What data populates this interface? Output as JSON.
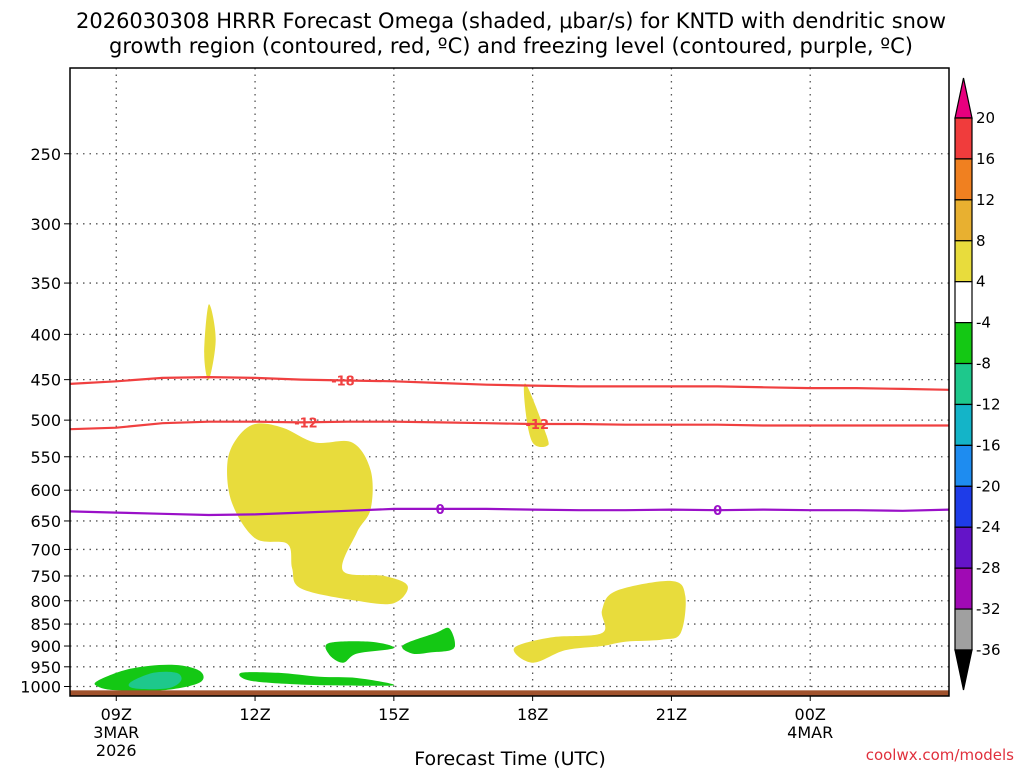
{
  "title_line1": "2026030308 HRRR Forecast Omega (shaded, μbar/s) for KNTD with dendritic snow",
  "title_line2": "growth region (contoured, red, ºC) and freezing level (contoured, purple, ºC)",
  "credit": "coolwx.com/models",
  "chart_data": {
    "type": "heatmap",
    "title": "2026030308 HRRR Forecast Omega (shaded, μbar/s) for KNTD with dendritic snow growth region (contoured, red, ºC) and freezing level (contoured, purple, ºC)",
    "xlabel": "Forecast Time (UTC)",
    "ylabel": "",
    "xlim": [
      8,
      27
    ],
    "ylim": [
      1025,
      200
    ],
    "y_scale": "log-pressure",
    "y_ticks": [
      250,
      300,
      350,
      400,
      450,
      500,
      550,
      600,
      650,
      700,
      750,
      800,
      850,
      900,
      950,
      1000
    ],
    "x_ticks": [
      {
        "x": 9,
        "label": "09Z",
        "sub1": "3MAR",
        "sub2": "2026"
      },
      {
        "x": 12,
        "label": "12Z",
        "sub1": "",
        "sub2": ""
      },
      {
        "x": 15,
        "label": "15Z",
        "sub1": "",
        "sub2": ""
      },
      {
        "x": 18,
        "label": "18Z",
        "sub1": "",
        "sub2": ""
      },
      {
        "x": 21,
        "label": "21Z",
        "sub1": "",
        "sub2": ""
      },
      {
        "x": 24,
        "label": "00Z",
        "sub1": "4MAR",
        "sub2": ""
      }
    ],
    "grid": true,
    "ground_pressure": 1010,
    "colorbar": {
      "levels": [
        20,
        16,
        12,
        8,
        4,
        -4,
        -8,
        -12,
        -16,
        -20,
        -24,
        -28,
        -32,
        -36
      ],
      "colors": [
        "#e8007e",
        "#f03c3c",
        "#f08020",
        "#e8b030",
        "#e8dc3c",
        "#ffffff",
        "#14c814",
        "#1ec88c",
        "#14b4c8",
        "#1e8cf0",
        "#1e3ce8",
        "#6414c8",
        "#a00ab4",
        "#a0a0a0",
        "#000000"
      ]
    },
    "omega_regions": [
      {
        "color": "#e8dc3c",
        "points": [
          [
            11.0,
            370
          ],
          [
            11.15,
            405
          ],
          [
            11.0,
            450
          ],
          [
            10.9,
            420
          ]
        ]
      },
      {
        "color": "#e8dc3c",
        "points": [
          [
            12.0,
            505
          ],
          [
            12.6,
            510
          ],
          [
            13.3,
            530
          ],
          [
            14.1,
            530
          ],
          [
            14.5,
            570
          ],
          [
            14.5,
            630
          ],
          [
            14.2,
            670
          ],
          [
            13.9,
            740
          ],
          [
            14.8,
            750
          ],
          [
            15.3,
            770
          ],
          [
            15.0,
            805
          ],
          [
            14.2,
            800
          ],
          [
            13.0,
            775
          ],
          [
            12.8,
            735
          ],
          [
            12.7,
            690
          ],
          [
            12.0,
            680
          ],
          [
            11.5,
            620
          ],
          [
            11.4,
            560
          ],
          [
            11.6,
            525
          ]
        ]
      },
      {
        "color": "#e8dc3c",
        "points": [
          [
            17.85,
            455
          ],
          [
            18.3,
            520
          ],
          [
            18.3,
            535
          ],
          [
            18.0,
            530
          ],
          [
            17.85,
            490
          ]
        ]
      },
      {
        "color": "#e8dc3c",
        "points": [
          [
            19.8,
            780
          ],
          [
            21.0,
            760
          ],
          [
            21.3,
            790
          ],
          [
            21.2,
            870
          ],
          [
            20.8,
            885
          ],
          [
            20.0,
            890
          ],
          [
            19.5,
            900
          ],
          [
            18.7,
            910
          ],
          [
            18.0,
            940
          ],
          [
            17.6,
            905
          ],
          [
            18.4,
            880
          ],
          [
            19.5,
            870
          ],
          [
            19.5,
            820
          ]
        ]
      },
      {
        "color": "#14c814",
        "points": [
          [
            13.6,
            893
          ],
          [
            14.5,
            890
          ],
          [
            15.0,
            905
          ],
          [
            14.2,
            918
          ],
          [
            13.9,
            940
          ],
          [
            13.6,
            920
          ]
        ]
      },
      {
        "color": "#14c814",
        "points": [
          [
            15.2,
            898
          ],
          [
            15.9,
            870
          ],
          [
            16.2,
            860
          ],
          [
            16.3,
            905
          ],
          [
            15.8,
            915
          ],
          [
            15.4,
            918
          ]
        ]
      },
      {
        "color": "#14c814",
        "points": [
          [
            8.6,
            985
          ],
          [
            9.3,
            955
          ],
          [
            10.2,
            945
          ],
          [
            10.8,
            960
          ],
          [
            10.8,
            990
          ],
          [
            10.0,
            1010
          ],
          [
            9.0,
            1010
          ],
          [
            8.6,
            1000
          ]
        ]
      },
      {
        "color": "#1ec88c",
        "points": [
          [
            9.3,
            990
          ],
          [
            9.8,
            965
          ],
          [
            10.3,
            965
          ],
          [
            10.4,
            985
          ],
          [
            10.1,
            1005
          ],
          [
            9.4,
            1005
          ]
        ]
      },
      {
        "color": "#14c814",
        "points": [
          [
            11.7,
            965
          ],
          [
            12.5,
            965
          ],
          [
            13.4,
            975
          ],
          [
            14.2,
            978
          ],
          [
            15.0,
            995
          ],
          [
            14.5,
            998
          ],
          [
            13.0,
            995
          ],
          [
            11.9,
            985
          ]
        ]
      }
    ],
    "contours": [
      {
        "color": "#f04040",
        "label": "-18",
        "label_x": 13.9,
        "points": [
          [
            8,
            455
          ],
          [
            9,
            452
          ],
          [
            10,
            448
          ],
          [
            11,
            447
          ],
          [
            12,
            448
          ],
          [
            13,
            450
          ],
          [
            14,
            451
          ],
          [
            15,
            452
          ],
          [
            16,
            454
          ],
          [
            17,
            456
          ],
          [
            18,
            457
          ],
          [
            19,
            458
          ],
          [
            20,
            458
          ],
          [
            21,
            458
          ],
          [
            22,
            458
          ],
          [
            23,
            459
          ],
          [
            24,
            460
          ],
          [
            25,
            460
          ],
          [
            26,
            461
          ],
          [
            27,
            462
          ]
        ]
      },
      {
        "color": "#f04040",
        "label": "-12",
        "label_x": 13.1,
        "points": [
          [
            8,
            512
          ],
          [
            9,
            510
          ],
          [
            10,
            504
          ],
          [
            11,
            502
          ],
          [
            12,
            502
          ],
          [
            13,
            503
          ],
          [
            14,
            502
          ],
          [
            15,
            502
          ],
          [
            16,
            503
          ],
          [
            17,
            504
          ],
          [
            18,
            505
          ],
          [
            19,
            505
          ],
          [
            20,
            506
          ],
          [
            21,
            506
          ],
          [
            22,
            506
          ],
          [
            23,
            507
          ],
          [
            24,
            507
          ],
          [
            25,
            507
          ],
          [
            26,
            507
          ],
          [
            27,
            507
          ]
        ]
      },
      {
        "color": "#f04040",
        "label": "-12",
        "label_x": 18.1,
        "points": []
      },
      {
        "color": "#9a10c8",
        "label": "0",
        "label_x": 16.0,
        "points": [
          [
            8,
            634
          ],
          [
            9,
            636
          ],
          [
            10,
            638
          ],
          [
            11,
            640
          ],
          [
            12,
            639
          ],
          [
            13,
            636
          ],
          [
            14,
            633
          ],
          [
            15,
            630
          ],
          [
            16,
            630
          ],
          [
            17,
            630
          ],
          [
            18,
            631
          ],
          [
            19,
            632
          ],
          [
            20,
            632
          ],
          [
            21,
            631
          ],
          [
            22,
            632
          ],
          [
            23,
            631
          ],
          [
            24,
            632
          ],
          [
            25,
            632
          ],
          [
            26,
            633
          ],
          [
            27,
            631
          ]
        ]
      },
      {
        "color": "#9a10c8",
        "label": "0",
        "label_x": 22.0,
        "points": []
      }
    ]
  }
}
